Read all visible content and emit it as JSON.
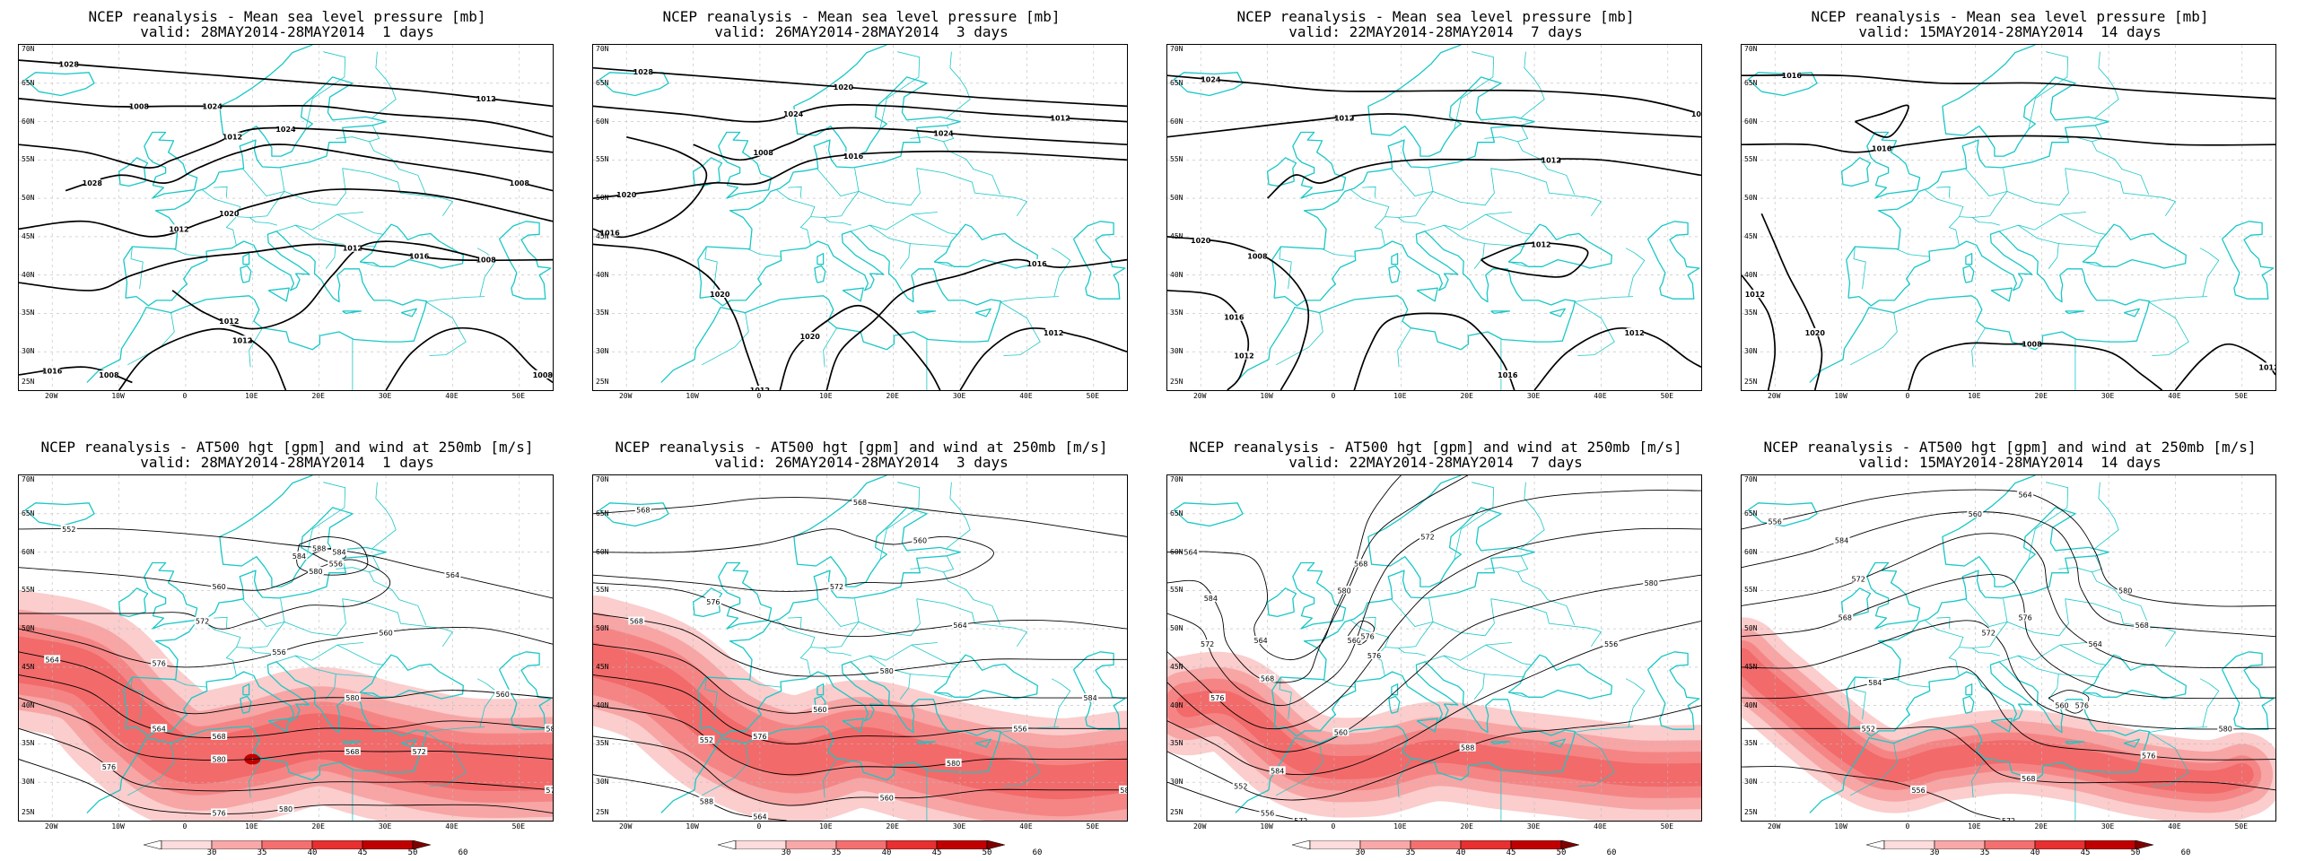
{
  "panels": [
    {
      "title1": "NCEP reanalysis - Mean sea level pressure [mb]",
      "title2": "valid: 28MAY2014-28MAY2014  1 days",
      "field": "mslp",
      "contour_labels": [
        "1028",
        "1024",
        "1024",
        "1028",
        "1020",
        "1016",
        "1012",
        "1024",
        "1020",
        "1016",
        "1012",
        "1008",
        "1012",
        "1008",
        "1012",
        "1012",
        "1008",
        "1012",
        "1008",
        "1008"
      ]
    },
    {
      "title1": "NCEP reanalysis - Mean sea level pressure [mb]",
      "title2": "valid: 26MAY2014-28MAY2014  3 days",
      "field": "mslp",
      "contour_labels": [
        "1028",
        "1024",
        "1024",
        "1020",
        "1020",
        "1016",
        "1020",
        "1012",
        "1016",
        "1020",
        "1012",
        "1008",
        "1016",
        "1012"
      ]
    },
    {
      "title1": "NCEP reanalysis - Mean sea level pressure [mb]",
      "title2": "valid: 22MAY2014-28MAY2014  7 days",
      "field": "mslp",
      "contour_labels": [
        "1024",
        "1020",
        "1020",
        "1020",
        "1016",
        "1016",
        "1012",
        "1012",
        "1016",
        "1012",
        "1012",
        "1008",
        "1012"
      ]
    },
    {
      "title1": "NCEP reanalysis - Mean sea level pressure [mb]",
      "title2": "valid: 15MAY2014-28MAY2014  14 days",
      "field": "mslp",
      "contour_labels": [
        "1016",
        "1016",
        "1020",
        "1012",
        "1008",
        "1012"
      ]
    },
    {
      "title1": "NCEP reanalysis - AT500 hgt [gpm] and wind at 250mb [m/s]",
      "title2": "valid: 28MAY2014-28MAY2014  1 days",
      "field": "z500",
      "contour_labels": [
        "552",
        "556",
        "560",
        "564",
        "568",
        "572",
        "576",
        "580",
        "584",
        "588",
        "564",
        "560",
        "556",
        "560",
        "564",
        "568",
        "572",
        "576",
        "580",
        "584",
        "588",
        "572",
        "576",
        "580",
        "584",
        "580"
      ]
    },
    {
      "title1": "NCEP reanalysis - AT500 hgt [gpm] and wind at 250mb [m/s]",
      "title2": "valid: 26MAY2014-28MAY2014  3 days",
      "field": "z500",
      "contour_labels": [
        "568",
        "560",
        "564",
        "568",
        "560",
        "556",
        "552",
        "560",
        "564",
        "568",
        "572",
        "576",
        "580",
        "584",
        "576",
        "580",
        "584",
        "588"
      ]
    },
    {
      "title1": "NCEP reanalysis - AT500 hgt [gpm] and wind at 250mb [m/s]",
      "title2": "valid: 22MAY2014-28MAY2014  7 days",
      "field": "z500",
      "contour_labels": [
        "564",
        "568",
        "572",
        "576",
        "560",
        "556",
        "552",
        "556",
        "560",
        "564",
        "568",
        "572",
        "576",
        "580",
        "584",
        "588",
        "572",
        "576",
        "580",
        "584"
      ]
    },
    {
      "title1": "NCEP reanalysis - AT500 hgt [gpm] and wind at 250mb [m/s]",
      "title2": "valid: 15MAY2014-28MAY2014  14 days",
      "field": "z500",
      "contour_labels": [
        "556",
        "560",
        "564",
        "568",
        "572",
        "576",
        "552",
        "556",
        "560",
        "564",
        "568",
        "572",
        "576",
        "580",
        "584",
        "568",
        "572",
        "576",
        "580",
        "584"
      ]
    }
  ],
  "lat_labels": [
    "70N",
    "65N",
    "60N",
    "55N",
    "50N",
    "45N",
    "40N",
    "35N",
    "30N",
    "25N"
  ],
  "lon_labels": [
    "20W",
    "10W",
    "0",
    "10E",
    "20E",
    "30E",
    "40E",
    "50E"
  ],
  "colorbar": {
    "ticks": [
      "30",
      "35",
      "40",
      "45",
      "50",
      "60"
    ],
    "colors": [
      "#ffffff",
      "#fcdcdc",
      "#f8a8a8",
      "#f47070",
      "#e83030",
      "#c00000",
      "#800000"
    ]
  },
  "colors": {
    "contour": "#000000",
    "coast": "#1bc7c7",
    "grid": "#bbbbbb",
    "jet": "#f04a4a"
  }
}
